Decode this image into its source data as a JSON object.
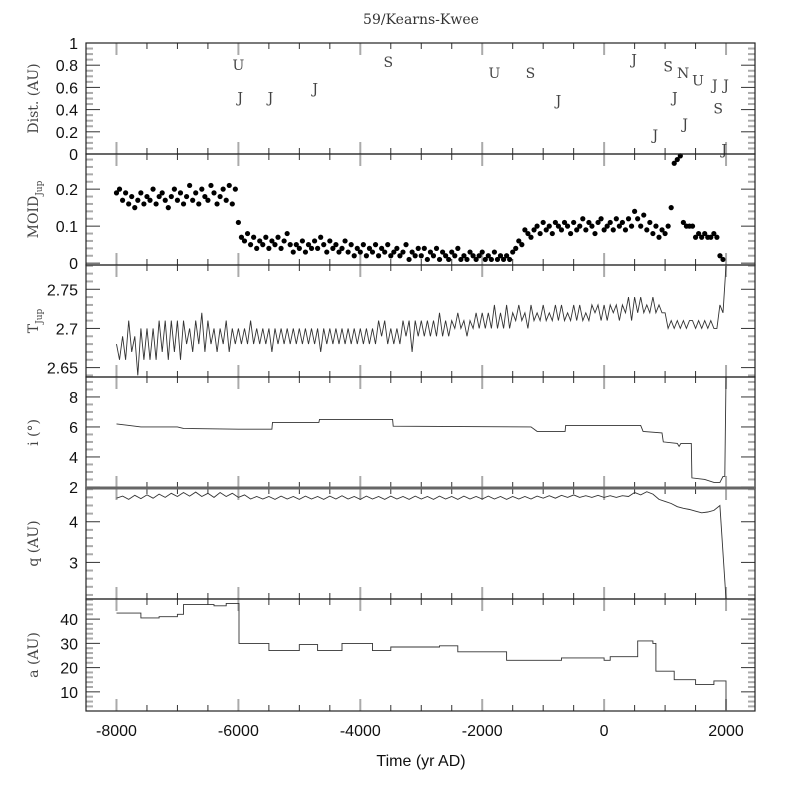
{
  "chart_data": {
    "type": "multi-panel",
    "title": "59/Kearns-Kwee",
    "xlabel": "Time (yr AD)",
    "xlim": [
      -8500,
      2475
    ],
    "xticks": [
      -8000,
      -6000,
      -4000,
      -2000,
      0,
      2000
    ],
    "xticklabels": [
      "-8000",
      "-6000",
      "-4000",
      "-2000",
      "0",
      "2000"
    ],
    "panels": [
      {
        "id": "dist",
        "type": "text-markers",
        "ylabel": "Dist. (AU)",
        "ylabel_sub": "",
        "ylim": [
          0,
          1
        ],
        "minor": 0.05,
        "yticks": [
          0,
          0.2,
          0.4,
          0.6,
          0.8,
          1
        ],
        "yticklabels": [
          "0",
          "0.2",
          "0.4",
          "0.6",
          "0.8",
          "1"
        ],
        "points": [
          {
            "t": -6000,
            "v": 0.8,
            "label": "U"
          },
          {
            "t": -5970,
            "v": 0.51,
            "label": "J"
          },
          {
            "t": -5475,
            "v": 0.51,
            "label": "J"
          },
          {
            "t": -4740,
            "v": 0.59,
            "label": "J"
          },
          {
            "t": -3540,
            "v": 0.83,
            "label": "S"
          },
          {
            "t": -1800,
            "v": 0.73,
            "label": "U"
          },
          {
            "t": -1210,
            "v": 0.73,
            "label": "S"
          },
          {
            "t": -750,
            "v": 0.48,
            "label": "J"
          },
          {
            "t": 490,
            "v": 0.85,
            "label": "J"
          },
          {
            "t": 1050,
            "v": 0.79,
            "label": "S"
          },
          {
            "t": 1115,
            "v": 0.73,
            "label": "N"
          },
          {
            "t": 1160,
            "v": 0.51,
            "label": "J"
          },
          {
            "t": 1330,
            "v": 0.27,
            "label": "J"
          },
          {
            "t": 840,
            "v": 0.17,
            "label": "J"
          },
          {
            "t": 1540,
            "v": 0.66,
            "label": "U"
          },
          {
            "t": 1700,
            "v": 0.62,
            "label": "J"
          },
          {
            "t": 2000,
            "v": 0.62,
            "label": "J"
          },
          {
            "t": 1870,
            "v": 0.41,
            "label": "S"
          },
          {
            "t": 1970,
            "v": 0.04,
            "label": "J"
          }
        ]
      },
      {
        "id": "moid",
        "type": "scatter",
        "ylabel": "MOID",
        "ylabel_sub": "Jup",
        "ylim": [
          -0.005,
          0.295
        ],
        "minor": 0.02,
        "yticks": [
          0,
          0.1,
          0.2
        ],
        "yticklabels": [
          "0",
          "0.1",
          "0.2"
        ],
        "t_start": -8000,
        "t_step": 50,
        "values": [
          0.19,
          0.2,
          0.17,
          0.19,
          0.16,
          0.18,
          0.15,
          0.17,
          0.19,
          0.16,
          0.18,
          0.17,
          0.2,
          0.16,
          0.18,
          0.19,
          0.17,
          0.15,
          0.18,
          0.2,
          0.17,
          0.19,
          0.16,
          0.18,
          0.21,
          0.17,
          0.19,
          0.16,
          0.2,
          0.18,
          0.17,
          0.21,
          0.19,
          0.16,
          0.18,
          0.2,
          0.17,
          0.21,
          0.16,
          0.2,
          0.11,
          0.07,
          0.06,
          0.08,
          0.05,
          0.07,
          0.04,
          0.06,
          0.05,
          0.07,
          0.04,
          0.06,
          0.05,
          0.07,
          0.04,
          0.06,
          0.08,
          0.05,
          0.03,
          0.05,
          0.04,
          0.06,
          0.03,
          0.05,
          0.04,
          0.06,
          0.04,
          0.07,
          0.05,
          0.03,
          0.06,
          0.04,
          0.05,
          0.03,
          0.04,
          0.06,
          0.03,
          0.05,
          0.02,
          0.04,
          0.03,
          0.05,
          0.02,
          0.04,
          0.03,
          0.05,
          0.02,
          0.04,
          0.03,
          0.05,
          0.02,
          0.03,
          0.04,
          0.02,
          0.03,
          0.05,
          0.01,
          0.03,
          0.02,
          0.04,
          0.02,
          0.04,
          0.01,
          0.03,
          0.02,
          0.04,
          0.01,
          0.03,
          0.02,
          0.01,
          0.03,
          0.02,
          0.04,
          0.01,
          0.02,
          0.01,
          0.03,
          0.02,
          0.01,
          0.02,
          0.03,
          0.01,
          0.02,
          0.01,
          0.03,
          0.01,
          0.02,
          0.01,
          0.02,
          0.01,
          0.03,
          0.04,
          0.06,
          0.05,
          0.09,
          0.08,
          0.07,
          0.09,
          0.1,
          0.08,
          0.11,
          0.09,
          0.1,
          0.08,
          0.11,
          0.1,
          0.09,
          0.11,
          0.1,
          0.08,
          0.11,
          0.09,
          0.1,
          0.12,
          0.09,
          0.11,
          0.1,
          0.08,
          0.11,
          0.12,
          0.09,
          0.1,
          0.11,
          0.09,
          0.12,
          0.1,
          0.11,
          0.09,
          0.12,
          0.1,
          0.14,
          0.12,
          0.1,
          0.13,
          0.09,
          0.11,
          0.08,
          0.1,
          0.07,
          0.09,
          0.08,
          0.1,
          0.15,
          0.27,
          0.28,
          0.29,
          0.11,
          0.1,
          0.1,
          0.1,
          0.07,
          0.08,
          0.07,
          0.08,
          0.07,
          0.07,
          0.08,
          0.07,
          0.02,
          0.01
        ]
      },
      {
        "id": "tjup",
        "type": "line",
        "ylabel": "T",
        "ylabel_sub": "Jup",
        "ylim": [
          2.638,
          2.781
        ],
        "minor": 0.01,
        "yticks": [
          2.65,
          2.7,
          2.75
        ],
        "yticklabels": [
          "2.65",
          "2.7",
          "2.75"
        ],
        "t_start": -8000,
        "t_step": 50,
        "values": [
          2.68,
          2.66,
          2.69,
          2.66,
          2.71,
          2.67,
          2.69,
          2.64,
          2.7,
          2.66,
          2.7,
          2.66,
          2.7,
          2.66,
          2.71,
          2.67,
          2.71,
          2.66,
          2.71,
          2.67,
          2.71,
          2.66,
          2.71,
          2.68,
          2.7,
          2.67,
          2.71,
          2.68,
          2.72,
          2.67,
          2.71,
          2.68,
          2.7,
          2.67,
          2.7,
          2.68,
          2.71,
          2.67,
          2.7,
          2.68,
          2.7,
          2.68,
          2.7,
          2.68,
          2.71,
          2.68,
          2.7,
          2.68,
          2.7,
          2.68,
          2.7,
          2.67,
          2.7,
          2.68,
          2.7,
          2.68,
          2.7,
          2.68,
          2.7,
          2.68,
          2.7,
          2.68,
          2.7,
          2.68,
          2.7,
          2.68,
          2.7,
          2.67,
          2.7,
          2.68,
          2.7,
          2.68,
          2.7,
          2.68,
          2.7,
          2.68,
          2.7,
          2.68,
          2.7,
          2.68,
          2.7,
          2.68,
          2.7,
          2.68,
          2.7,
          2.68,
          2.71,
          2.69,
          2.71,
          2.68,
          2.7,
          2.68,
          2.7,
          2.68,
          2.71,
          2.69,
          2.71,
          2.67,
          2.71,
          2.69,
          2.71,
          2.69,
          2.71,
          2.69,
          2.71,
          2.69,
          2.72,
          2.69,
          2.71,
          2.69,
          2.71,
          2.7,
          2.72,
          2.7,
          2.71,
          2.69,
          2.71,
          2.7,
          2.72,
          2.7,
          2.72,
          2.7,
          2.72,
          2.7,
          2.73,
          2.7,
          2.72,
          2.7,
          2.73,
          2.7,
          2.72,
          2.71,
          2.73,
          2.71,
          2.72,
          2.7,
          2.73,
          2.71,
          2.72,
          2.71,
          2.73,
          2.71,
          2.72,
          2.71,
          2.73,
          2.71,
          2.73,
          2.71,
          2.72,
          2.71,
          2.73,
          2.71,
          2.73,
          2.71,
          2.72,
          2.71,
          2.73,
          2.72,
          2.73,
          2.71,
          2.73,
          2.71,
          2.73,
          2.72,
          2.73,
          2.71,
          2.73,
          2.72,
          2.74,
          2.71,
          2.74,
          2.72,
          2.74,
          2.72,
          2.73,
          2.72,
          2.74,
          2.72,
          2.73,
          2.72,
          2.72,
          2.7,
          2.71,
          2.7,
          2.71,
          2.7,
          2.71,
          2.7,
          2.71,
          2.71,
          2.7,
          2.71,
          2.7,
          2.71,
          2.7,
          2.71,
          2.7,
          2.7,
          2.73,
          2.72,
          2.78
        ]
      },
      {
        "id": "incl",
        "type": "line",
        "ylabel": "i (°)",
        "ylabel_sub": "",
        "ylim": [
          1.93,
          9.33
        ],
        "minor": 0.5,
        "yticks": [
          2,
          4,
          6,
          8
        ],
        "yticklabels": [
          "2",
          "4",
          "6",
          "8"
        ],
        "points": [
          [
            -8000,
            6.2
          ],
          [
            -7600,
            6.0
          ],
          [
            -7000,
            6.0
          ],
          [
            -6900,
            5.9
          ],
          [
            -6000,
            5.85
          ],
          [
            -5450,
            5.85
          ],
          [
            -5440,
            6.3
          ],
          [
            -4680,
            6.3
          ],
          [
            -4670,
            6.5
          ],
          [
            -3470,
            6.5
          ],
          [
            -3460,
            6.05
          ],
          [
            -1200,
            6.0
          ],
          [
            -1100,
            5.7
          ],
          [
            -640,
            5.7
          ],
          [
            -630,
            6.1
          ],
          [
            600,
            6.1
          ],
          [
            640,
            5.7
          ],
          [
            950,
            5.6
          ],
          [
            970,
            5.0
          ],
          [
            1200,
            4.9
          ],
          [
            1230,
            4.7
          ],
          [
            1260,
            4.9
          ],
          [
            1430,
            4.9
          ],
          [
            1440,
            2.6
          ],
          [
            1650,
            2.5
          ],
          [
            1800,
            2.3
          ],
          [
            1900,
            2.3
          ],
          [
            1950,
            2.7
          ],
          [
            1980,
            2.7
          ],
          [
            2000,
            9.3
          ]
        ]
      },
      {
        "id": "q",
        "type": "line",
        "ylabel": "q (AU)",
        "ylabel_sub": "",
        "ylim": [
          2.1,
          4.83
        ],
        "minor": 0.2,
        "yticks": [
          3,
          4
        ],
        "yticklabels": [
          "3",
          "4"
        ],
        "t_start": -8000,
        "t_step": 100,
        "values": [
          4.58,
          4.63,
          4.55,
          4.65,
          4.57,
          4.66,
          4.58,
          4.68,
          4.6,
          4.7,
          4.62,
          4.72,
          4.63,
          4.73,
          4.62,
          4.7,
          4.6,
          4.72,
          4.62,
          4.7,
          4.6,
          4.66,
          4.56,
          4.62,
          4.56,
          4.62,
          4.55,
          4.63,
          4.56,
          4.62,
          4.55,
          4.63,
          4.56,
          4.62,
          4.55,
          4.63,
          4.56,
          4.64,
          4.56,
          4.62,
          4.55,
          4.63,
          4.56,
          4.62,
          4.55,
          4.63,
          4.56,
          4.62,
          4.55,
          4.63,
          4.56,
          4.62,
          4.55,
          4.63,
          4.56,
          4.62,
          4.55,
          4.63,
          4.56,
          4.62,
          4.56,
          4.63,
          4.56,
          4.62,
          4.55,
          4.62,
          4.56,
          4.62,
          4.56,
          4.63,
          4.58,
          4.64,
          4.58,
          4.65,
          4.6,
          4.66,
          4.6,
          4.64,
          4.6,
          4.65,
          4.6,
          4.64,
          4.6,
          4.64,
          4.62,
          4.72,
          4.66,
          4.74,
          4.68,
          4.55,
          4.5,
          4.45,
          4.37,
          4.33,
          4.3,
          4.26,
          4.22,
          4.24,
          4.28,
          4.4,
          2.1
        ]
      },
      {
        "id": "a",
        "type": "step",
        "ylabel": "a (AU)",
        "ylabel_sub": "",
        "ylim": [
          2.1,
          48.3
        ],
        "minor": 2,
        "yticks": [
          10,
          20,
          30,
          40
        ],
        "yticklabels": [
          "10",
          "20",
          "30",
          "40"
        ],
        "points": [
          [
            -8000,
            42.5
          ],
          [
            -7600,
            40.5
          ],
          [
            -7300,
            41
          ],
          [
            -7000,
            42
          ],
          [
            -6900,
            46
          ],
          [
            -6400,
            45.5
          ],
          [
            -6200,
            46.5
          ],
          [
            -6000,
            46.5
          ],
          [
            -5990,
            30
          ],
          [
            -5500,
            27
          ],
          [
            -5000,
            29.5
          ],
          [
            -4700,
            27
          ],
          [
            -4300,
            30
          ],
          [
            -3800,
            27
          ],
          [
            -3500,
            28.5
          ],
          [
            -2700,
            29
          ],
          [
            -2400,
            26.5
          ],
          [
            -2000,
            26.5
          ],
          [
            -1600,
            23
          ],
          [
            -700,
            24
          ],
          [
            -300,
            24
          ],
          [
            0,
            23
          ],
          [
            100,
            24.5
          ],
          [
            500,
            24.5
          ],
          [
            550,
            31
          ],
          [
            800,
            30
          ],
          [
            850,
            18.5
          ],
          [
            1150,
            15
          ],
          [
            1500,
            13
          ],
          [
            1800,
            14.5
          ],
          [
            1950,
            14.5
          ],
          [
            2000,
            2.5
          ]
        ]
      }
    ]
  }
}
